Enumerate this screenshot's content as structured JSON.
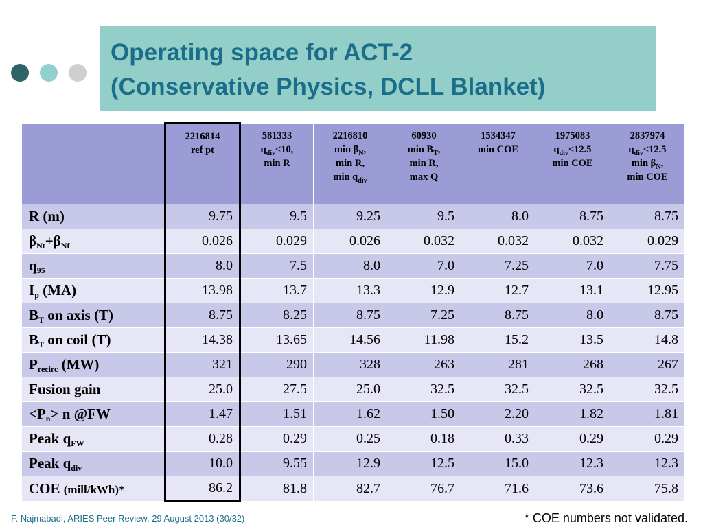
{
  "title": {
    "line1": "Operating space for ACT-2",
    "line2": "(Conservative Physics, DCLL Blanket)"
  },
  "colors": {
    "dot_dark": "#2e6468",
    "dot_light": "#92cfd0",
    "dot_grey": "#cfcfcf",
    "title_bg": "#93cfc8",
    "title_text": "#1b6e8a"
  },
  "symbols": {
    "beta": "β"
  },
  "table": {
    "columns": {
      "c1": {
        "id": "2216814",
        "l1": "ref pt"
      },
      "c2": {
        "id": "581333",
        "q": "q",
        "div": "div",
        "qtail": "<10,",
        "l2": "min R"
      },
      "c3": {
        "id": "2216810",
        "l1a": "min ",
        "n": "N",
        "comma": ",",
        "l2": "min R,",
        "l3a": "min q",
        "div": "div"
      },
      "c4": {
        "id": "60930",
        "l1a": "min B",
        "t": "T",
        "comma": ",",
        "l2": "min R,",
        "l3": "max Q"
      },
      "c5": {
        "id": "1534347",
        "l1": "min COE"
      },
      "c6": {
        "id": "1975083",
        "q": "q",
        "div": "div",
        "qtail": "<12.5",
        "l2": "min COE"
      },
      "c7": {
        "id": "2837974",
        "q": "q",
        "div": "div",
        "qtail": "<12.5",
        "l2a": "min ",
        "n": "N",
        "comma": ",",
        "l3": "min COE"
      }
    },
    "labels": {
      "R": "R (m)",
      "beta": {
        "nt": "Nt",
        "plus": "+",
        "nf": "Nf"
      },
      "q95": {
        "q": "q",
        "sub": "95"
      },
      "ip": {
        "i": "I",
        "sub": "p",
        "tail": " (MA)"
      },
      "bt_axis": {
        "b": "B",
        "sub": "T",
        "tail": " on axis (T)"
      },
      "bt_coil": {
        "b": "B",
        "sub": "T",
        "tail": " on coil (T)"
      },
      "precirc": {
        "p": "P",
        "sub": "recirc",
        "tail": " (MW)"
      },
      "fusion": "Fusion gain",
      "pn": {
        "a": "<P",
        "sub": "n",
        "tail": "> n @FW"
      },
      "peak_fw": {
        "a": "Peak q",
        "sub": "FW"
      },
      "peak_div": {
        "a": "Peak q",
        "sub": "div"
      },
      "coe": {
        "a": "COE ",
        "unit": "(mill/kWh)*"
      }
    },
    "rows": {
      "R": [
        "9.75",
        "9.5",
        "9.25",
        "9.5",
        "8.0",
        "8.75",
        "8.75"
      ],
      "beta": [
        "0.026",
        "0.029",
        "0.026",
        "0.032",
        "0.032",
        "0.032",
        "0.029"
      ],
      "q95": [
        "8.0",
        "7.5",
        "8.0",
        "7.0",
        "7.25",
        "7.0",
        "7.75"
      ],
      "ip": [
        "13.98",
        "13.7",
        "13.3",
        "12.9",
        "12.7",
        "13.1",
        "12.95"
      ],
      "bt_axis": [
        "8.75",
        "8.25",
        "8.75",
        "7.25",
        "8.75",
        "8.0",
        "8.75"
      ],
      "bt_coil": [
        "14.38",
        "13.65",
        "14.56",
        "11.98",
        "15.2",
        "13.5",
        "14.8"
      ],
      "precirc": [
        "321",
        "290",
        "328",
        "263",
        "281",
        "268",
        "267"
      ],
      "fusion": [
        "25.0",
        "27.5",
        "25.0",
        "32.5",
        "32.5",
        "32.5",
        "32.5"
      ],
      "pn": [
        "1.47",
        "1.51",
        "1.62",
        "1.50",
        "2.20",
        "1.82",
        "1.81"
      ],
      "peak_fw": [
        "0.28",
        "0.29",
        "0.25",
        "0.18",
        "0.33",
        "0.29",
        "0.29"
      ],
      "peak_div": [
        "10.0",
        "9.55",
        "12.9",
        "12.5",
        "15.0",
        "12.3",
        "12.3"
      ],
      "coe": [
        "86.2",
        "81.8",
        "82.7",
        "76.7",
        "71.6",
        "73.6",
        "75.8"
      ]
    }
  },
  "footer": {
    "citation": "F. Najmabadi, ARIES Peer Review, 29 August 2013 (30/32)",
    "note": "* COE numbers not validated."
  }
}
